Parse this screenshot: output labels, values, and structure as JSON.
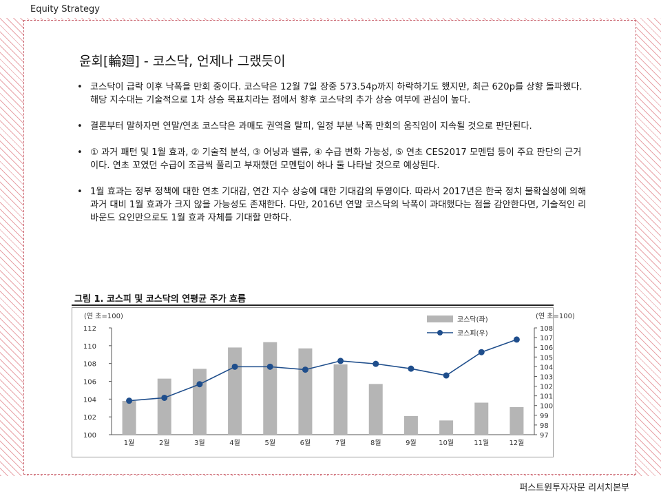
{
  "header": {
    "label": "Equity  Strategy"
  },
  "footer": {
    "label": "퍼스트원투자자문 리서치본부"
  },
  "title": "윤회[輪廻] - 코스닥, 언제나 그랬듯이",
  "bullets": [
    "코스닥이 급락 이후 낙폭을 만회 중이다. 코스닥은 12월 7일 장중 573.54p까지  하락하기도 했지만, 최근 620p를  상향 돌파했다. 해당 지수대는 기술적으로 1차 상승 목표치라는 점에서 향후 코스닥의 추가 상승 여부에 관심이 높다.",
    "결론부터 말하자면 연말/연초 코스닥은 과매도 권역을 탈피, 일정 부분 낙폭 만회의 움직임이 지속될 것으로 판단된다.",
    "① 과거 패턴 및 1월 효과, ② 기술적 분석, ③ 어닝과 밸류, ④ 수급 변화 가능성, ⑤ 연초 CES2017 모멘텀 등이 주요 판단의 근거이다. 연초 꼬였던 수급이 조금씩 풀리고 부재했던 모멘텀이 하나 둘 나타날 것으로 예상된다.",
    "1월 효과는 정부 정책에 대한 연초 기대감, 연간 지수 상승에 대한 기대감의 투영이다. 따라서 2017년은 한국 정치 불확실성에 의해 과거 대비 1월 효과가 크지 않을 가능성도 존재한다. 다만, 2016년 연말 코스닥의 낙폭이 과대했다는 점을 감안한다면, 기술적인 리바운드 요인만으로도 1월 효과 자체를 기대할 만하다."
  ],
  "chart_data": {
    "type": "bar+line",
    "title": "그림 1. 코스피 및 코스닥의 연평균 주가 흐름",
    "categories": [
      "1월",
      "2월",
      "3월",
      "4월",
      "5월",
      "6월",
      "7월",
      "8월",
      "9월",
      "10월",
      "11월",
      "12월"
    ],
    "left_axis": {
      "label": "(연 초=100)",
      "min": 100,
      "max": 112,
      "ticks": [
        "100",
        "102",
        "104",
        "106",
        "108",
        "110",
        "112"
      ]
    },
    "right_axis": {
      "label": "(연 초=100)",
      "min": 97,
      "max": 108,
      "ticks": [
        "97",
        "98",
        "99",
        "100",
        "101",
        "102",
        "103",
        "104",
        "105",
        "106",
        "107",
        "108"
      ]
    },
    "series": [
      {
        "name": "코스닥(좌)",
        "type": "bar",
        "axis": "left",
        "color": "#b5b5b5",
        "values": [
          103.8,
          106.3,
          107.4,
          109.8,
          110.4,
          109.7,
          107.9,
          105.7,
          102.1,
          101.6,
          103.6,
          103.1
        ]
      },
      {
        "name": "코스피(우)",
        "type": "line",
        "axis": "right",
        "color": "#1f4e8c",
        "values": [
          100.5,
          100.8,
          102.2,
          104.0,
          104.0,
          103.7,
          104.6,
          104.3,
          103.8,
          103.1,
          105.5,
          106.8
        ]
      }
    ],
    "legend": "top-right"
  }
}
